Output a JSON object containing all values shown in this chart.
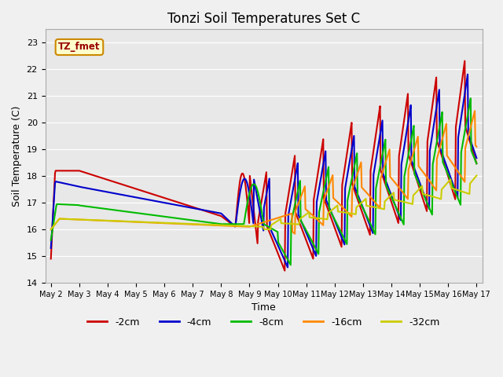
{
  "title": "Tonzi Soil Temperatures Set C",
  "xlabel": "Time",
  "ylabel": "Soil Temperature (C)",
  "ylim": [
    14.0,
    23.5
  ],
  "yticks": [
    14.0,
    15.0,
    16.0,
    17.0,
    18.0,
    19.0,
    20.0,
    21.0,
    22.0,
    23.0
  ],
  "legend_label": "TZ_fmet",
  "series_colors": {
    "-2cm": "#cc0000",
    "-4cm": "#0000cc",
    "-8cm": "#00bb00",
    "-16cm": "#ff8800",
    "-32cm": "#cccc00"
  },
  "bg_color": "#e8e8e8",
  "line_width": 1.5
}
